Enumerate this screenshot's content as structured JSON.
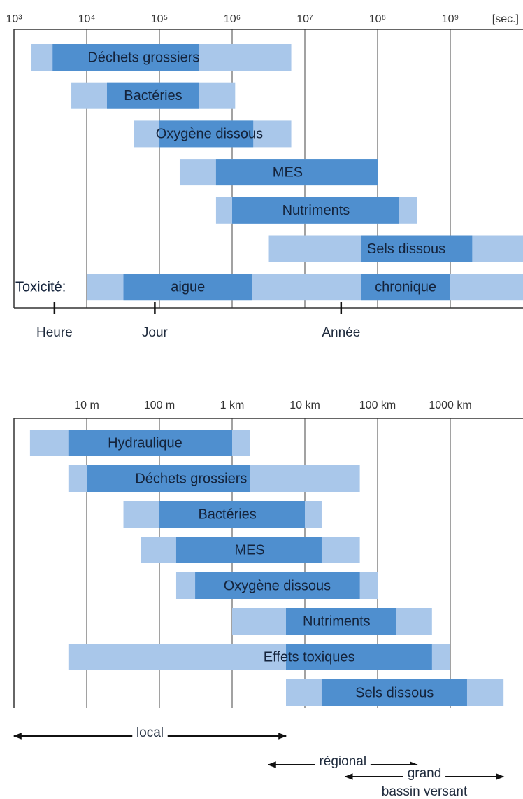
{
  "chart_data": [
    {
      "type": "range-bar",
      "xscale": "log",
      "x_unit": "[sec.]",
      "xlim": [
        1000,
        10000000000
      ],
      "xticks": [
        {
          "value": 1000,
          "label": "10³"
        },
        {
          "value": 10000,
          "label": "10⁴"
        },
        {
          "value": 100000,
          "label": "10⁵"
        },
        {
          "value": 1000000,
          "label": "10⁶"
        },
        {
          "value": 10000000,
          "label": "10⁷"
        },
        {
          "value": 100000000,
          "label": "10⁸"
        },
        {
          "value": 1000000000,
          "label": "10⁹"
        }
      ],
      "colors": {
        "range": "#a9c7ea",
        "core": "#4f8fcf"
      },
      "rows": [
        {
          "label": "Déchets grossiers",
          "range": [
            1740,
            6500000
          ],
          "core": [
            3400,
            350000
          ]
        },
        {
          "label": "Bactéries",
          "range": [
            6150,
            1100000
          ],
          "core": [
            19000,
            350000
          ]
        },
        {
          "label": "Oxygène dissous",
          "range": [
            45000,
            6500000
          ],
          "core": [
            98000,
            1950000
          ]
        },
        {
          "label": "MES",
          "range": [
            190000,
            100000000
          ],
          "core": [
            600000,
            100000000
          ]
        },
        {
          "label": "Nutriments",
          "range": [
            600000,
            350000000
          ],
          "core": [
            1000000,
            195000000
          ]
        },
        {
          "label": "Sels dissous",
          "range": [
            3200000,
            10000000000
          ],
          "core": [
            59000000,
            2000000000
          ]
        },
        {
          "label": "Toxicité:",
          "range": [
            10000,
            10000000000
          ],
          "cores": [
            {
              "label": "aigue",
              "range": [
                32000,
                1900000
              ]
            },
            {
              "label": "chronique",
              "range": [
                59000000,
                1000000000
              ]
            }
          ]
        }
      ],
      "markers": [
        {
          "label": "Heure",
          "value": 3600
        },
        {
          "label": "Jour",
          "value": 86400
        },
        {
          "label": "Année",
          "value": 31500000
        }
      ]
    },
    {
      "type": "range-bar",
      "xscale": "log",
      "xlim": [
        1,
        10000000
      ],
      "xticks": [
        {
          "value": 10,
          "label": "10 m"
        },
        {
          "value": 100,
          "label": "100 m"
        },
        {
          "value": 1000,
          "label": "1 km"
        },
        {
          "value": 10000,
          "label": "10 km"
        },
        {
          "value": 100000,
          "label": "100 km"
        },
        {
          "value": 1000000,
          "label": "1000 km"
        }
      ],
      "colors": {
        "range": "#a9c7ea",
        "core": "#4f8fcf"
      },
      "rows": [
        {
          "label": "Hydraulique",
          "range": [
            1.66,
            1740
          ],
          "core": [
            5.6,
            1000
          ]
        },
        {
          "label": "Déchets grossiers",
          "range": [
            5.6,
            57000
          ],
          "core": [
            10,
            1740
          ]
        },
        {
          "label": "Bactéries",
          "range": [
            32,
            17000
          ],
          "core": [
            100,
            10000
          ]
        },
        {
          "label": "MES",
          "range": [
            56,
            57000
          ],
          "core": [
            170,
            17000
          ]
        },
        {
          "label": "Oxygène dissous",
          "range": [
            170,
            100000
          ],
          "core": [
            310,
            57000
          ]
        },
        {
          "label": "Nutriments",
          "range": [
            1000,
            560000
          ],
          "core": [
            5500,
            180000
          ]
        },
        {
          "label": "Effets toxiques",
          "range": [
            5.6,
            1000000
          ],
          "core": [
            5500,
            560000
          ]
        },
        {
          "label": "Sels dissous",
          "range": [
            5500,
            5400000
          ],
          "core": [
            17000,
            1700000
          ]
        }
      ],
      "spans": [
        {
          "lines": [
            "local"
          ],
          "range": [
            1,
            5500
          ]
        },
        {
          "lines": [
            "régional"
          ],
          "range": [
            3160,
            350000
          ]
        },
        {
          "lines": [
            "grand",
            "bassin versant"
          ],
          "range": [
            36000,
            5400000
          ]
        }
      ]
    }
  ]
}
